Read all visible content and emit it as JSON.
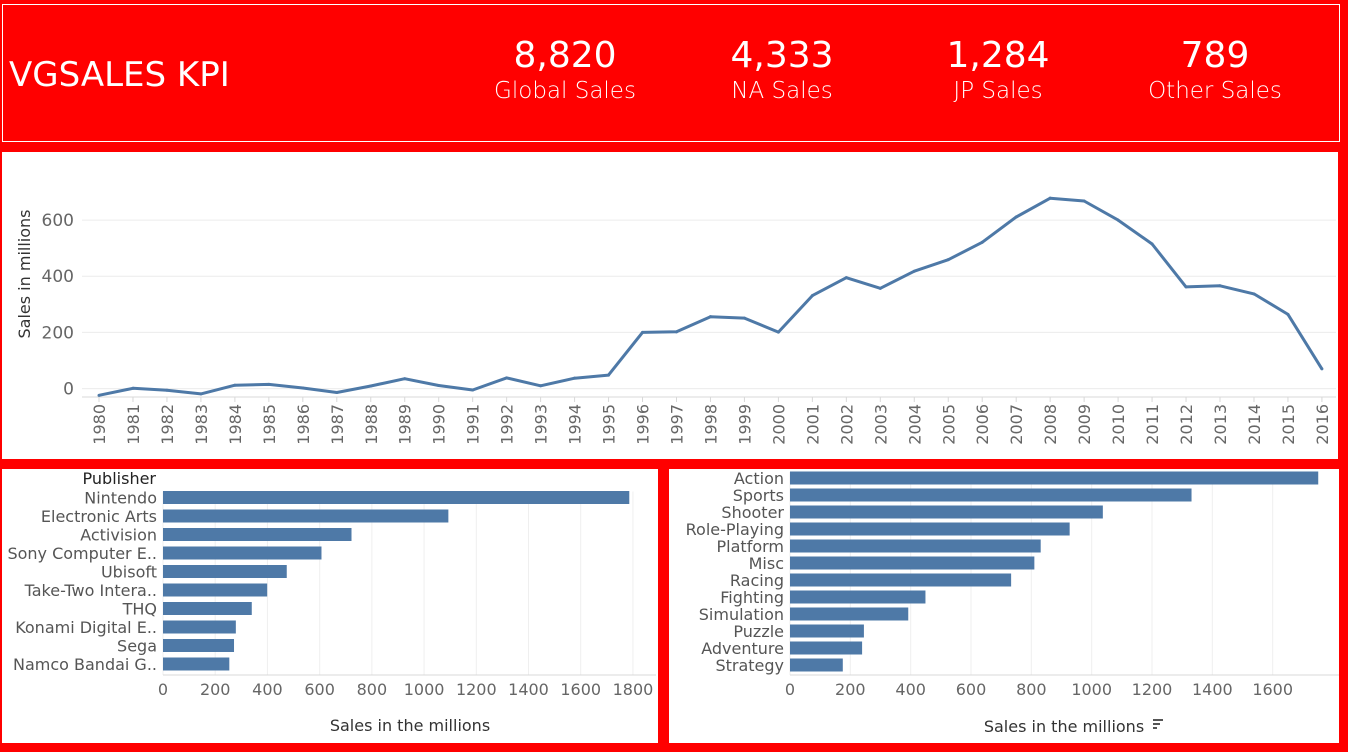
{
  "kpi": {
    "title": "VGSALES KPI",
    "items": [
      {
        "value": "8,820",
        "label": "Global Sales"
      },
      {
        "value": "4,333",
        "label": "NA Sales"
      },
      {
        "value": "1,284",
        "label": "JP Sales"
      },
      {
        "value": "789",
        "label": "Other Sales"
      }
    ]
  },
  "chart_data": [
    {
      "type": "line",
      "ylabel": "Sales in millions",
      "ylim": [
        -30,
        700
      ],
      "yticks": [
        0,
        200,
        400,
        600
      ],
      "x": [
        "1980",
        "1981",
        "1982",
        "1983",
        "1984",
        "1985",
        "1986",
        "1987",
        "1988",
        "1989",
        "1990",
        "1991",
        "1992",
        "1993",
        "1994",
        "1995",
        "1996",
        "1997",
        "1998",
        "1999",
        "2000",
        "2001",
        "2002",
        "2003",
        "2004",
        "2005",
        "2006",
        "2007",
        "2008",
        "2009",
        "2010",
        "2011",
        "2012",
        "2013",
        "2014",
        "2015",
        "2016"
      ],
      "values": [
        -24,
        1,
        -6,
        -19,
        12,
        15,
        2,
        -14,
        9,
        35,
        11,
        -5,
        38,
        10,
        37,
        48,
        200,
        202,
        256,
        251,
        201,
        331,
        395,
        357,
        418,
        459,
        521,
        611,
        678,
        668,
        600,
        515,
        362,
        366,
        337,
        264,
        70
      ],
      "color": "#4e79a7"
    },
    {
      "type": "bar",
      "title": "Publisher",
      "xlabel": "Sales in the millions",
      "xlim": [
        0,
        1850
      ],
      "xticks": [
        0,
        200,
        400,
        600,
        800,
        1000,
        1200,
        1400,
        1600,
        1800
      ],
      "categories": [
        "Nintendo",
        "Electronic Arts",
        "Activision",
        "Sony Computer E..",
        "Ubisoft",
        "Take-Two Intera..",
        "THQ",
        "Konami Digital E..",
        "Sega",
        "Namco Bandai G.."
      ],
      "values": [
        1786,
        1093,
        722,
        607,
        474,
        399,
        340,
        279,
        272,
        254
      ],
      "color": "#4e79a7"
    },
    {
      "type": "bar",
      "xlabel": "Sales in the millions",
      "sort_icon": "sort-descending-icon",
      "xlim": [
        0,
        1790
      ],
      "xticks": [
        0,
        200,
        400,
        600,
        800,
        1000,
        1200,
        1400,
        1600
      ],
      "categories": [
        "Action",
        "Sports",
        "Shooter",
        "Role-Playing",
        "Platform",
        "Misc",
        "Racing",
        "Fighting",
        "Simulation",
        "Puzzle",
        "Adventure",
        "Strategy"
      ],
      "values": [
        1751,
        1331,
        1037,
        927,
        831,
        810,
        733,
        449,
        392,
        245,
        239,
        175
      ],
      "color": "#4e79a7"
    }
  ]
}
